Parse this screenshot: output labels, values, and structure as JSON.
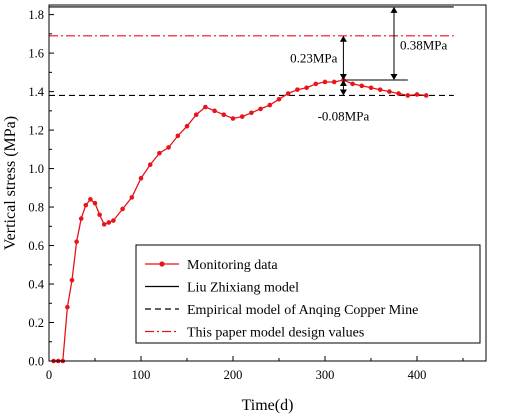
{
  "chart_data": {
    "type": "line",
    "xlabel": "Time(d)",
    "ylabel": "Vertical stress (MPa)",
    "xlim": [
      0,
      475
    ],
    "ylim": [
      0,
      1.85
    ],
    "xticks": [
      0,
      100,
      200,
      300,
      400
    ],
    "yticks": [
      0.0,
      0.2,
      0.4,
      0.6,
      0.8,
      1.0,
      1.2,
      1.4,
      1.6,
      1.8
    ],
    "x_tick_labels": [
      "0",
      "100",
      "200",
      "300",
      "400"
    ],
    "y_tick_labels": [
      "0.0",
      "0.2",
      "0.4",
      "0.6",
      "0.8",
      "1.0",
      "1.2",
      "1.4",
      "1.6",
      "1.8"
    ],
    "grid": false,
    "legend_position": "bottom-right",
    "series": [
      {
        "name": "Monitoring data",
        "style": "solid-marker",
        "color": "#e8141a",
        "x": [
          5,
          10,
          15,
          20,
          25,
          30,
          35,
          40,
          45,
          50,
          55,
          60,
          65,
          70,
          80,
          90,
          100,
          110,
          120,
          130,
          140,
          150,
          160,
          170,
          180,
          190,
          200,
          210,
          220,
          230,
          240,
          250,
          260,
          270,
          280,
          290,
          300,
          310,
          320,
          330,
          340,
          350,
          360,
          370,
          380,
          390,
          400,
          410
        ],
        "y": [
          0.0,
          0.0,
          0.0,
          0.28,
          0.42,
          0.62,
          0.74,
          0.81,
          0.84,
          0.82,
          0.76,
          0.71,
          0.72,
          0.73,
          0.79,
          0.85,
          0.95,
          1.02,
          1.08,
          1.11,
          1.17,
          1.22,
          1.28,
          1.32,
          1.3,
          1.28,
          1.26,
          1.27,
          1.29,
          1.31,
          1.33,
          1.36,
          1.39,
          1.41,
          1.42,
          1.44,
          1.45,
          1.45,
          1.46,
          1.44,
          1.43,
          1.42,
          1.41,
          1.4,
          1.39,
          1.38,
          1.385,
          1.38
        ]
      },
      {
        "name": "Liu Zhixiang model",
        "style": "solid",
        "color": "#000000",
        "constant": 1.84
      },
      {
        "name": "Empirical model of Anqing Copper Mine",
        "style": "dashed",
        "color": "#000000",
        "constant": 1.38
      },
      {
        "name": "This paper model design values",
        "style": "dash-dot",
        "color": "#e8141a",
        "constant": 1.69
      }
    ],
    "annotations": [
      {
        "text": "0.38MPa",
        "x1": 375,
        "y_from": 1.46,
        "y_to": 1.84
      },
      {
        "text": "0.23MPa",
        "x1": 320,
        "y_from": 1.46,
        "y_to": 1.69
      },
      {
        "text": "-0.08MPa",
        "x1": 320,
        "y_from": 1.38,
        "y_to": 1.46
      }
    ]
  }
}
